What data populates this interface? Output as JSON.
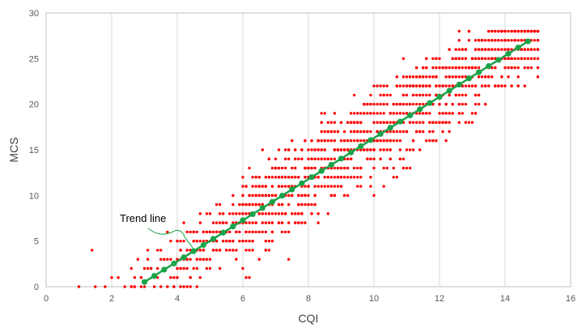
{
  "chart_data": {
    "type": "scatter",
    "xlabel": "CQI",
    "ylabel": "MCS",
    "xlim": [
      0,
      16
    ],
    "ylim": [
      0,
      30
    ],
    "xticks": [
      0,
      2,
      4,
      6,
      8,
      10,
      12,
      14,
      16
    ],
    "yticks": [
      0,
      5,
      10,
      15,
      20,
      25,
      30
    ],
    "grid": "vertical",
    "colors": {
      "points": "#ff0000",
      "trend": "#1aa34a",
      "grid": "#d9d9d9",
      "axis": "#bfbfbf"
    },
    "annotation": {
      "text": "Trend line",
      "points_to": [
        4.5,
        4.0
      ]
    },
    "trend_line": {
      "x": [
        3.0,
        3.3,
        3.6,
        3.9,
        4.2,
        4.5,
        4.8,
        5.1,
        5.4,
        5.7,
        6.0,
        6.3,
        6.6,
        6.9,
        7.2,
        7.5,
        7.8,
        8.1,
        8.4,
        8.7,
        9.0,
        9.3,
        9.6,
        9.9,
        10.2,
        10.5,
        10.8,
        11.1,
        11.4,
        11.7,
        12.0,
        12.3,
        12.6,
        12.9,
        13.2,
        13.5,
        13.8,
        14.1,
        14.4,
        14.7
      ],
      "y": [
        0.4,
        1.1,
        2.0,
        2.8,
        3.6,
        4.3,
        5.0,
        5.7,
        6.5,
        7.3,
        8.1,
        8.8,
        9.5,
        10.2,
        11.0,
        11.8,
        12.5,
        13.2,
        14.0,
        14.8,
        15.5,
        16.3,
        17.1,
        17.8,
        18.6,
        19.3,
        20.0,
        20.8,
        21.5,
        22.2,
        23.0,
        23.7,
        24.5,
        25.2,
        26.0,
        26.8,
        27.4,
        26.4,
        25.9,
        27.0
      ],
      "_note": "Straight regression line rising from about (3, 0.4) to (14.8, 27); markers are evenly spaced"
    },
    "scatter_points": {
      "x": [
        1.0,
        1.4,
        1.5,
        1.8,
        2.0,
        2.2,
        2.4,
        2.6,
        2.7,
        2.8,
        2.9,
        3.0,
        3.1,
        3.2,
        3.3,
        3.4,
        3.5,
        3.6,
        3.7,
        3.8,
        3.9,
        4.0,
        4.1,
        4.2,
        4.3,
        4.4,
        4.5,
        4.6,
        4.7,
        4.8,
        4.9,
        5.0,
        5.1,
        5.2,
        5.3,
        5.4,
        5.5,
        5.6,
        5.7,
        5.8,
        5.9,
        6.0,
        6.1,
        6.2,
        6.3,
        6.4,
        6.5,
        6.6,
        6.7,
        6.8,
        6.9,
        7.0,
        7.1,
        7.2,
        7.3,
        7.4,
        7.5,
        7.6,
        7.7,
        7.8,
        7.9,
        8.0,
        8.1,
        8.2,
        8.3,
        8.4,
        8.5,
        8.6,
        8.7,
        8.8,
        8.9,
        9.0,
        9.1,
        9.2,
        9.3,
        9.4,
        9.5,
        9.6,
        9.7,
        9.8,
        9.9,
        10.0,
        10.1,
        10.2,
        10.3,
        10.4,
        10.5,
        10.6,
        10.7,
        10.8,
        10.9,
        11.0,
        11.1,
        11.2,
        11.3,
        11.4,
        11.5,
        11.6,
        11.7,
        11.8,
        11.9,
        12.0,
        12.1,
        12.2,
        12.3,
        12.4,
        12.5,
        12.6,
        12.7,
        12.8,
        12.9,
        13.0,
        13.1,
        13.2,
        13.3,
        13.4,
        13.5,
        13.6,
        13.7,
        13.8,
        13.9,
        14.0,
        14.1,
        14.2,
        14.3,
        14.4,
        14.5,
        14.6,
        14.7,
        14.8,
        14.9,
        15.0
      ],
      "y": [
        0,
        4,
        0,
        0,
        1,
        1,
        0,
        2,
        0,
        3,
        1,
        0,
        4,
        2,
        0,
        1,
        4,
        2,
        0,
        3,
        0,
        5,
        4,
        2,
        3,
        0,
        5,
        3,
        7,
        6,
        5,
        6,
        4,
        9,
        2,
        7,
        4,
        8,
        5,
        3,
        7,
        9,
        6,
        10,
        8,
        7,
        3,
        9,
        11,
        8,
        10,
        12,
        9,
        13,
        11,
        12,
        10,
        14,
        12,
        15,
        11,
        13,
        14,
        12,
        16,
        15,
        13,
        14,
        16,
        15,
        17,
        14,
        16,
        18,
        15,
        17,
        16,
        18,
        19,
        17,
        15,
        20,
        18,
        19,
        16,
        21,
        19,
        18,
        22,
        20,
        21,
        19,
        22,
        20,
        23,
        21,
        22,
        24,
        22,
        23,
        25,
        21,
        24,
        22,
        26,
        23,
        25,
        24,
        26,
        25,
        27,
        24,
        26,
        25,
        27,
        26,
        28,
        27,
        25,
        26,
        28,
        27,
        26,
        28,
        27,
        28,
        27,
        28,
        27,
        26,
        28,
        27
      ],
      "_note": "Dense cloud of integer MCS values (0–28) for CQI 1–15, concentrated along the trend; ~1600 points drawn by generator seeded from these anchors"
    }
  }
}
